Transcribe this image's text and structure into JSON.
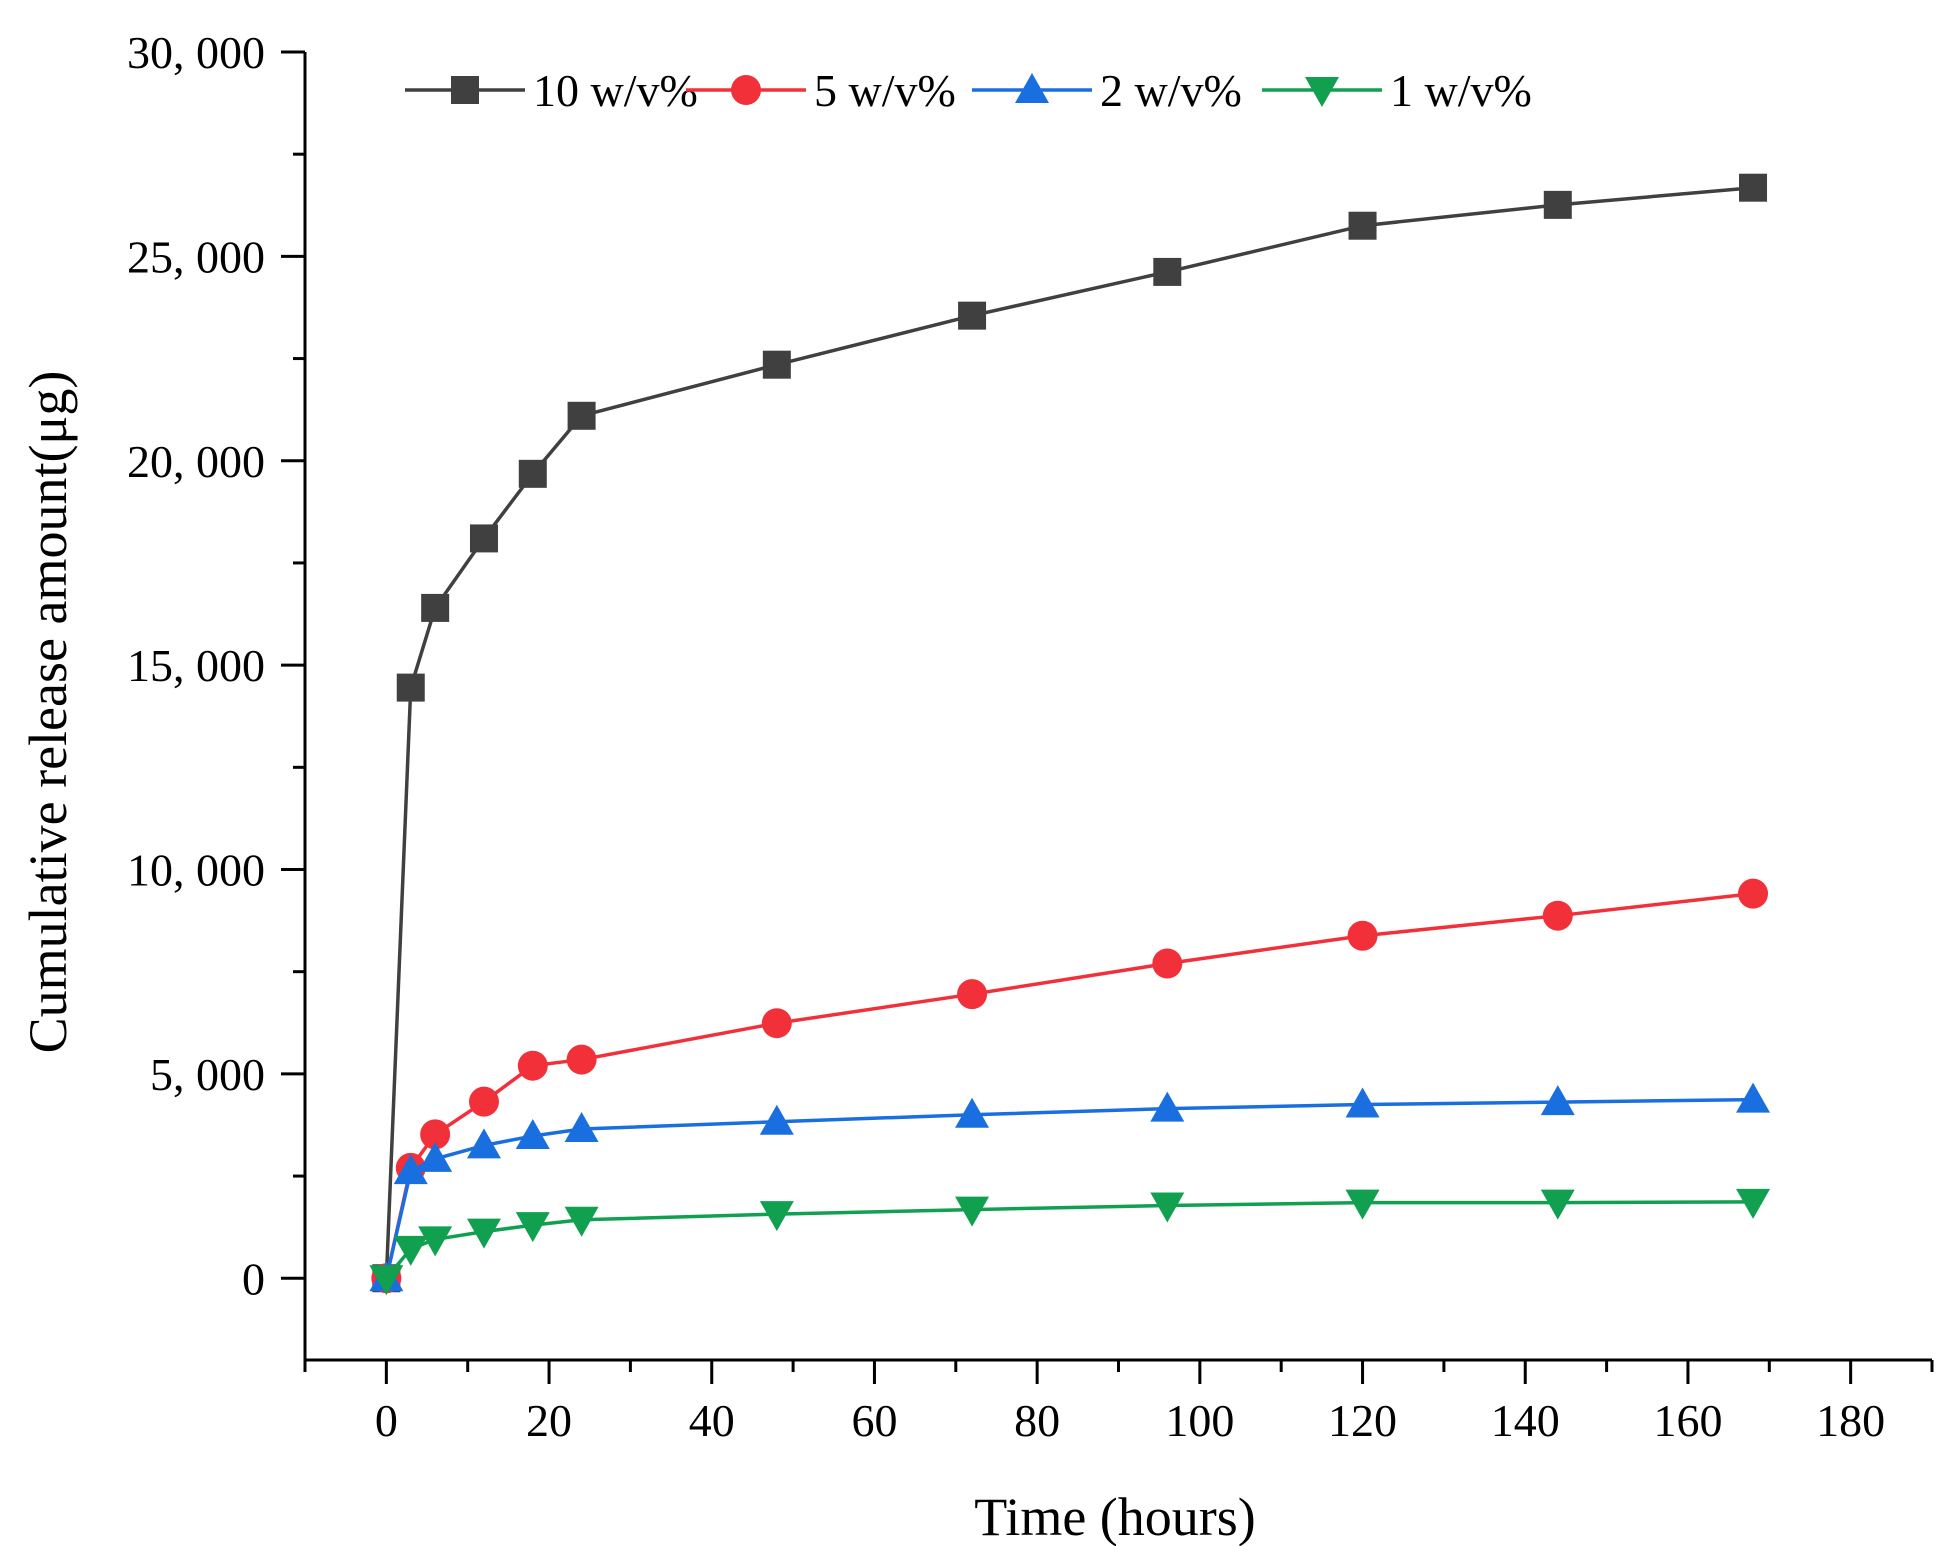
{
  "chart_data": {
    "type": "line",
    "title": "",
    "xlabel": "Time (hours)",
    "ylabel": "Cumulative release amount(μg)",
    "xlim": [
      -10,
      190
    ],
    "ylim": [
      -2000,
      30000
    ],
    "xticks": [
      0,
      20,
      40,
      60,
      80,
      100,
      120,
      140,
      160,
      180
    ],
    "xtick_labels": [
      "0",
      "20",
      "40",
      "60",
      "80",
      "100",
      "120",
      "140",
      "160",
      "180"
    ],
    "yticks": [
      0,
      5000,
      10000,
      15000,
      20000,
      25000,
      30000
    ],
    "ytick_labels": [
      "0",
      "5, 000",
      "10, 000",
      "15, 000",
      "20, 000",
      "25, 000",
      "30, 000"
    ],
    "grid": false,
    "legend_position": "top",
    "x": [
      0,
      3,
      6,
      12,
      18,
      24,
      48,
      72,
      96,
      120,
      144,
      168
    ],
    "series": [
      {
        "name": "10 w/v%",
        "color": "#404040",
        "marker": "square",
        "values": [
          0,
          14450,
          16400,
          18100,
          19680,
          21100,
          22350,
          23550,
          24620,
          25750,
          26260,
          26680
        ]
      },
      {
        "name": "5 w/v%",
        "color": "#f2303a",
        "marker": "circle",
        "values": [
          0,
          2700,
          3520,
          4320,
          5200,
          5350,
          6240,
          6950,
          7700,
          8380,
          8870,
          9410
        ]
      },
      {
        "name": "2 w/v%",
        "color": "#1a6fe0",
        "marker": "triangle-up",
        "values": [
          0,
          2620,
          2920,
          3250,
          3480,
          3650,
          3830,
          4000,
          4150,
          4250,
          4310,
          4370
        ]
      },
      {
        "name": "1 w/v%",
        "color": "#10a050",
        "marker": "triangle-down",
        "values": [
          0,
          720,
          950,
          1140,
          1300,
          1430,
          1570,
          1680,
          1780,
          1850,
          1850,
          1870
        ]
      }
    ]
  }
}
